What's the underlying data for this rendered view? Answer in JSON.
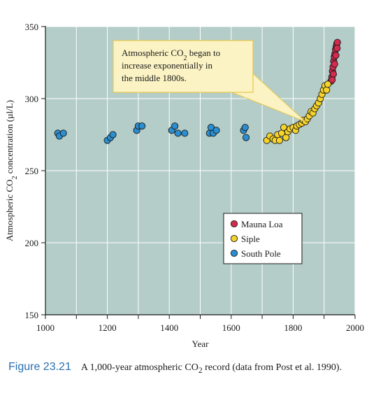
{
  "chart_data": {
    "type": "scatter",
    "xlabel": "Year",
    "ylabel_parts": [
      "Atmospheric CO",
      "2",
      " concentration (µl/L)"
    ],
    "xlim": [
      1000,
      2000
    ],
    "ylim": [
      150,
      350
    ],
    "x_ticks": [
      1000,
      1200,
      1400,
      1600,
      1800,
      2000
    ],
    "x_minor_ticks": [
      1100,
      1300,
      1500,
      1700,
      1900
    ],
    "y_ticks": [
      150,
      200,
      250,
      300,
      350
    ],
    "grid": true,
    "legend_position": "bottom-right",
    "annotation_lines": [
      [
        "Atmospheric CO",
        "2",
        " began to"
      ],
      [
        "increase exponentially in",
        "",
        ""
      ],
      [
        "the middle 1800s.",
        "",
        ""
      ]
    ],
    "annotation_target": {
      "x": 1840,
      "y": 284
    },
    "colors": {
      "background": "#b4cdc8",
      "grid": "#ffffff",
      "Mauna Loa": "#d42a4e",
      "Siple": "#f6d32a",
      "South Pole": "#2b8ed0",
      "annotation_fill": "#fbf3c4",
      "annotation_border": "#e8c84a",
      "caption_accent": "#2a6fb0"
    },
    "series": [
      {
        "name": "Mauna Loa",
        "points": [
          [
            1922,
            312
          ],
          [
            1925,
            315
          ],
          [
            1927,
            319
          ],
          [
            1929,
            322
          ],
          [
            1931,
            326
          ],
          [
            1933,
            329
          ],
          [
            1935,
            331
          ],
          [
            1937,
            334
          ],
          [
            1939,
            336
          ],
          [
            1941,
            338
          ],
          [
            1943,
            339
          ],
          [
            1942,
            335
          ],
          [
            1938,
            330
          ],
          [
            1934,
            324
          ],
          [
            1930,
            317
          ],
          [
            1926,
            313
          ]
        ]
      },
      {
        "name": "Siple",
        "points": [
          [
            1715,
            271
          ],
          [
            1725,
            274
          ],
          [
            1735,
            272
          ],
          [
            1742,
            271
          ],
          [
            1750,
            275
          ],
          [
            1756,
            271
          ],
          [
            1763,
            276
          ],
          [
            1770,
            280
          ],
          [
            1777,
            273
          ],
          [
            1783,
            277
          ],
          [
            1790,
            279
          ],
          [
            1800,
            280
          ],
          [
            1808,
            278
          ],
          [
            1812,
            281
          ],
          [
            1820,
            282
          ],
          [
            1828,
            283
          ],
          [
            1833,
            285
          ],
          [
            1840,
            284
          ],
          [
            1846,
            286
          ],
          [
            1852,
            288
          ],
          [
            1858,
            291
          ],
          [
            1864,
            290
          ],
          [
            1870,
            293
          ],
          [
            1876,
            295
          ],
          [
            1882,
            297
          ],
          [
            1888,
            300
          ],
          [
            1893,
            303
          ],
          [
            1898,
            306
          ],
          [
            1903,
            309
          ],
          [
            1908,
            306
          ],
          [
            1912,
            310
          ]
        ]
      },
      {
        "name": "South Pole",
        "points": [
          [
            1040,
            276
          ],
          [
            1045,
            274
          ],
          [
            1058,
            276
          ],
          [
            1200,
            271
          ],
          [
            1210,
            273
          ],
          [
            1218,
            275
          ],
          [
            1295,
            278
          ],
          [
            1300,
            281
          ],
          [
            1312,
            281
          ],
          [
            1408,
            278
          ],
          [
            1418,
            281
          ],
          [
            1428,
            276
          ],
          [
            1450,
            276
          ],
          [
            1530,
            276
          ],
          [
            1535,
            280
          ],
          [
            1542,
            276
          ],
          [
            1552,
            278
          ],
          [
            1640,
            278
          ],
          [
            1645,
            280
          ],
          [
            1648,
            273
          ]
        ]
      }
    ]
  },
  "caption": {
    "figure_number": "Figure 23.21",
    "text_before": "A 1,000-year atmospheric CO",
    "subscript": "2",
    "text_after": " record (data from Post et al. 1990)."
  }
}
